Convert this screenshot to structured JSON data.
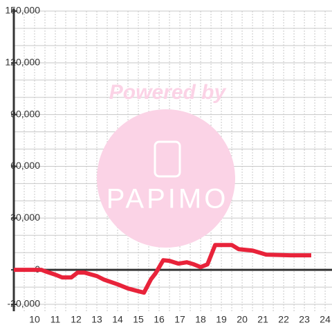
{
  "chart_data": {
    "type": "line",
    "watermark": [
      "Powered by",
      "PAPIMO"
    ],
    "x": [
      9,
      10.33,
      10.5,
      11,
      11.33,
      11.77,
      12.07,
      12.4,
      13,
      13.33,
      14,
      14.5,
      15,
      15.27,
      15.6,
      15.83,
      16.2,
      16.5,
      16.93,
      17.33,
      17.67,
      18,
      18.33,
      18.7,
      19.5,
      19.83,
      20.5,
      21.17,
      22.33,
      23.33
    ],
    "series": [
      {
        "name": null,
        "color": "#e8233a",
        "values": [
          0,
          0,
          -800,
          -2800,
          -4400,
          -4400,
          -1600,
          -1600,
          -3600,
          -5600,
          -8400,
          -10800,
          -12400,
          -13200,
          -5600,
          -2000,
          5600,
          5200,
          3600,
          4400,
          3200,
          1600,
          3200,
          14400,
          14400,
          12000,
          11200,
          8800,
          8400,
          8400
        ]
      }
    ],
    "xlim": [
      9,
      24.33
    ],
    "ylim": [
      -24000,
      150000
    ],
    "xticks": [
      10,
      11,
      12,
      13,
      14,
      15,
      16,
      17,
      18,
      19,
      20,
      21,
      22,
      23,
      24
    ],
    "x_minor_ticks": [
      9.5,
      10,
      10.5,
      11,
      11.5,
      12,
      12.5,
      13,
      13.5,
      14,
      14.5,
      15,
      15.5,
      16,
      16.5,
      17,
      17.5,
      18,
      18.5,
      19,
      19.5,
      20,
      20.5,
      21,
      21.5,
      22,
      22.5,
      23,
      23.5,
      24
    ],
    "yticks": [
      {
        "value": -20000,
        "label": "-20,000"
      },
      0,
      {
        "value": 30000,
        "label": "30,000"
      },
      {
        "value": 60000,
        "label": "60,000"
      },
      {
        "value": 90000,
        "label": "90,000"
      },
      {
        "value": 120000,
        "label": "120,000"
      },
      {
        "value": 150000,
        "label": "150,000"
      }
    ],
    "y_minor_ticks": [
      -20000,
      -10000,
      10000,
      20000,
      30000,
      40000,
      50000,
      60000,
      70000,
      80000,
      90000,
      100000,
      110000,
      120000,
      130000,
      140000,
      150000
    ],
    "grid": true
  }
}
